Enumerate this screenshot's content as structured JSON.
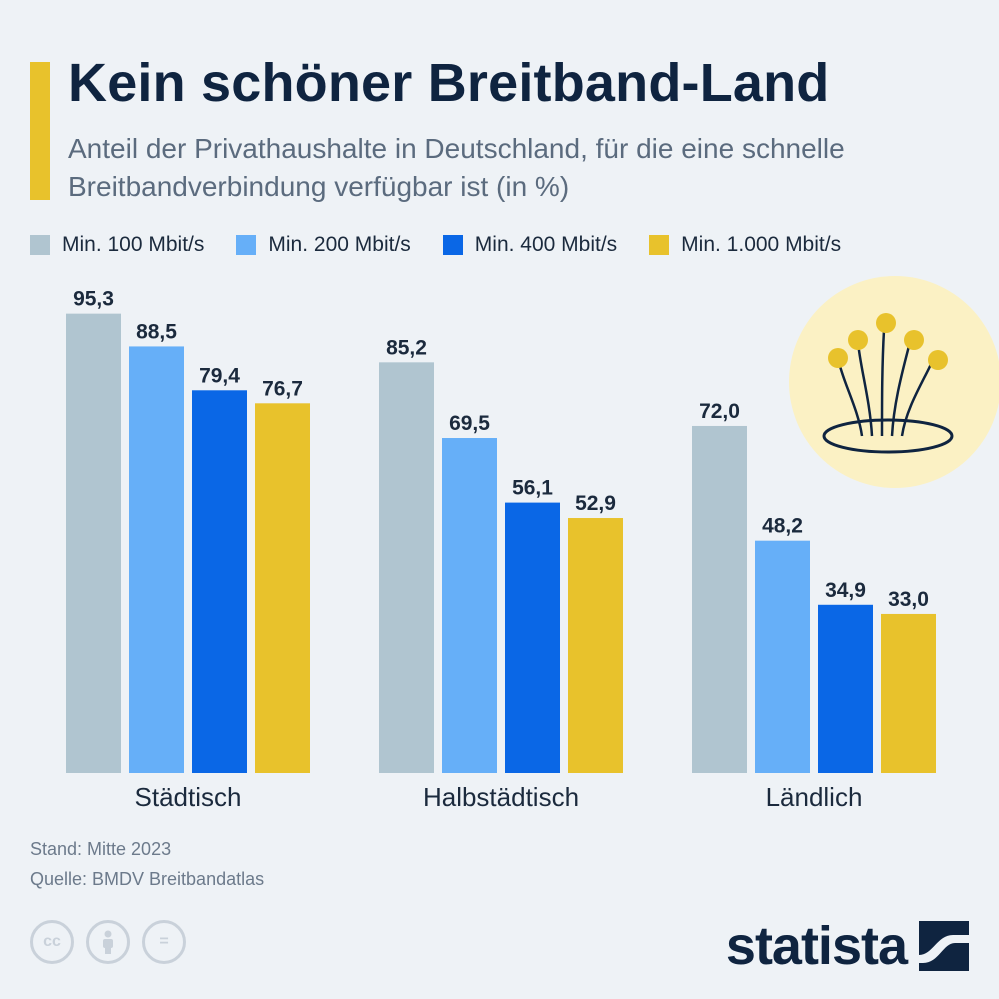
{
  "header": {
    "title": "Kein schöner Breitband-Land",
    "subtitle": "Anteil der Privathaushalte in Deutschland, für die eine schnelle Breitbandverbindung verfügbar ist (in %)"
  },
  "footer": {
    "stand": "Stand: Mitte 2023",
    "quelle": "Quelle: BMDV Breitbandatlas",
    "cc_label": "cc",
    "equals_label": "="
  },
  "brand": {
    "name": "statista"
  },
  "colors": {
    "accent": "#e8c22c",
    "title": "#0f2440",
    "series": [
      "#b0c5d0",
      "#66aff8",
      "#0a67e6",
      "#e8c22c"
    ]
  },
  "chart_data": {
    "type": "bar",
    "categories": [
      "Städtisch",
      "Halbstädtisch",
      "Ländlich"
    ],
    "series": [
      {
        "name": "Min. 100 Mbit/s",
        "values": [
          95.3,
          85.2,
          72.0
        ]
      },
      {
        "name": "Min. 200 Mbit/s",
        "values": [
          88.5,
          69.5,
          48.2
        ]
      },
      {
        "name": "Min. 400 Mbit/s",
        "values": [
          79.4,
          56.1,
          34.9
        ]
      },
      {
        "name": "Min. 1.000 Mbit/s",
        "values": [
          76.7,
          52.9,
          33.0
        ]
      }
    ],
    "value_labels": [
      [
        "95,3",
        "85,2",
        "72,0"
      ],
      [
        "88,5",
        "69,5",
        "48,2"
      ],
      [
        "79,4",
        "56,1",
        "34,9"
      ],
      [
        "76,7",
        "52,9",
        "33,0"
      ]
    ],
    "ylim": [
      0,
      100
    ],
    "legend_position": "top",
    "grid": false
  },
  "illustration": {
    "icon": "fiber-optic-icon"
  }
}
